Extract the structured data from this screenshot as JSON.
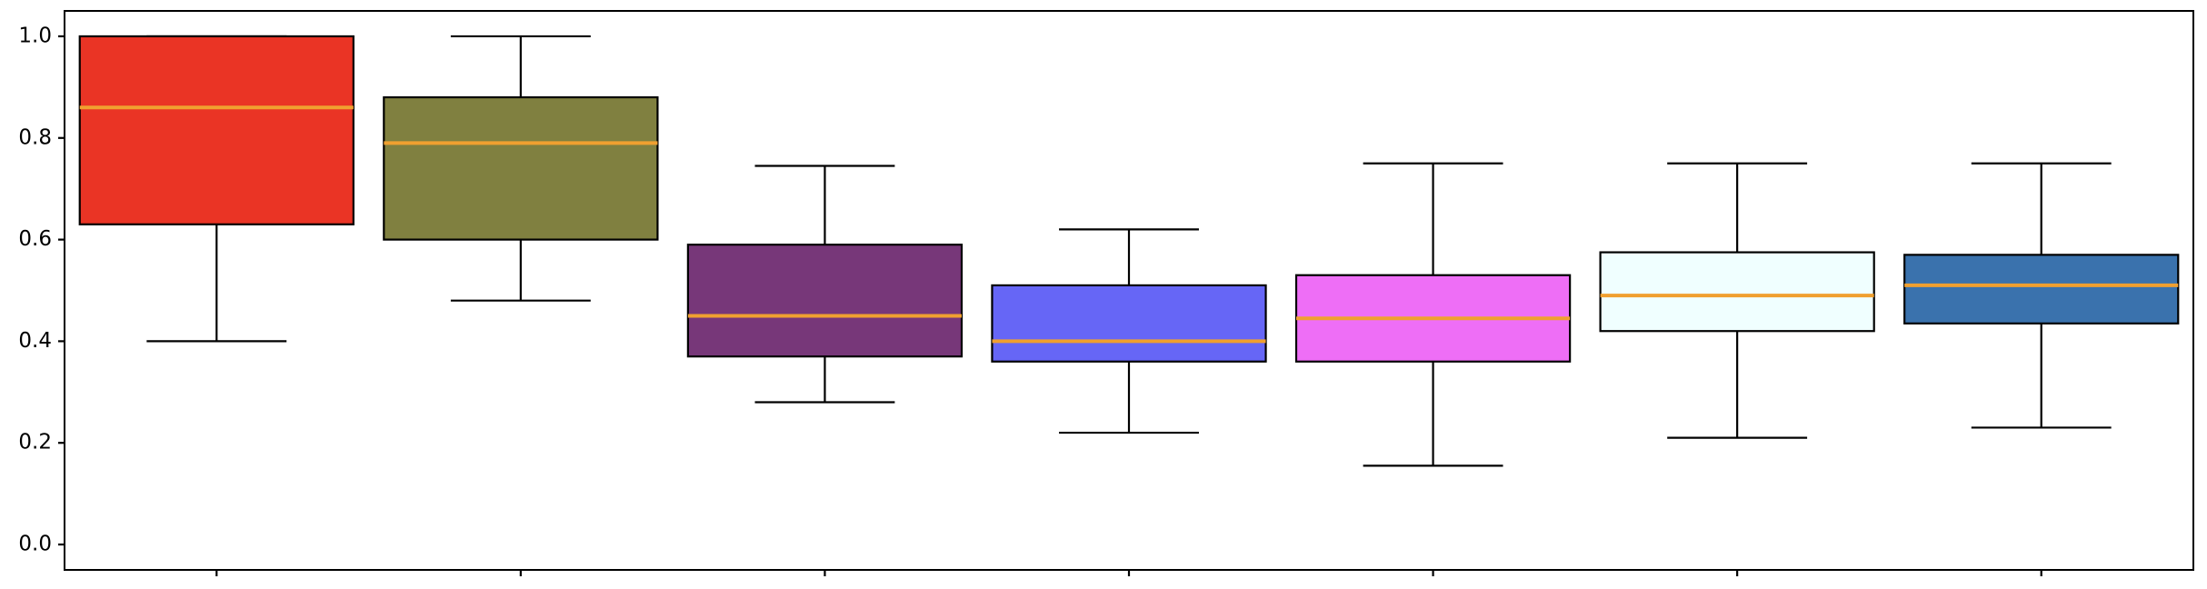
{
  "chart_data": {
    "type": "box",
    "categories": [
      null,
      null,
      null,
      null,
      null,
      null,
      null
    ],
    "boxes": [
      {
        "color": "#ea3425",
        "whislo": 0.4,
        "q1": 0.63,
        "median": 0.86,
        "q3": 1.0,
        "whishi": 1.0
      },
      {
        "color": "#808040",
        "whislo": 0.48,
        "q1": 0.6,
        "median": 0.79,
        "q3": 0.88,
        "whishi": 1.0
      },
      {
        "color": "#773779",
        "whislo": 0.28,
        "q1": 0.37,
        "median": 0.45,
        "q3": 0.59,
        "whishi": 0.745
      },
      {
        "color": "#6666f6",
        "whislo": 0.22,
        "q1": 0.36,
        "median": 0.4,
        "q3": 0.51,
        "whishi": 0.62
      },
      {
        "color": "#ee6ef6",
        "whislo": 0.155,
        "q1": 0.36,
        "median": 0.445,
        "q3": 0.53,
        "whishi": 0.75
      },
      {
        "color": "#f0ffff",
        "whislo": 0.21,
        "q1": 0.42,
        "median": 0.49,
        "q3": 0.575,
        "whishi": 0.75
      },
      {
        "color": "#3a72ad",
        "whislo": 0.23,
        "q1": 0.435,
        "median": 0.51,
        "q3": 0.57,
        "whishi": 0.75
      }
    ],
    "median_color": "#f0a030",
    "ylim": [
      -0.05,
      1.05
    ],
    "yticks": [
      {
        "value": 0,
        "label": "0.0"
      },
      0.2,
      0.4,
      0.6,
      0.8,
      {
        "value": 1,
        "label": "1.0"
      }
    ],
    "grid": false
  }
}
